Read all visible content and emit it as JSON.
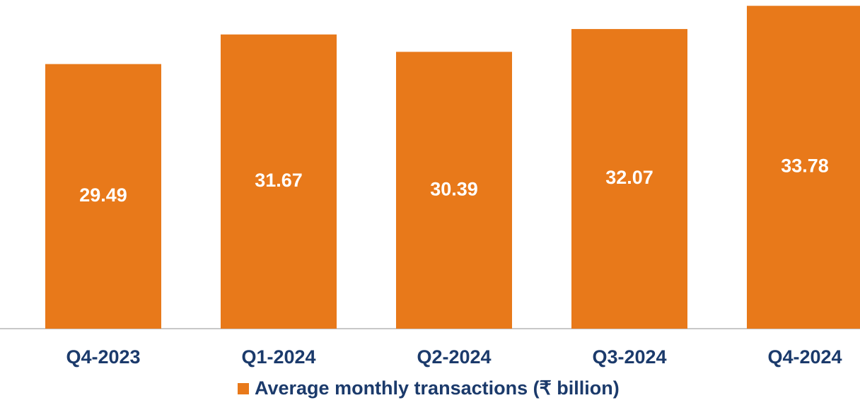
{
  "chart_data": {
    "type": "bar",
    "categories": [
      "Q4-2023",
      "Q1-2024",
      "Q2-2024",
      "Q3-2024",
      "Q4-2024"
    ],
    "series": [
      {
        "name": "Average monthly transactions (₹ billion)",
        "color": "#e8791a",
        "values": [
          29.49,
          31.67,
          30.39,
          32.07,
          33.78
        ]
      }
    ],
    "ylim": [
      10,
      34
    ]
  }
}
